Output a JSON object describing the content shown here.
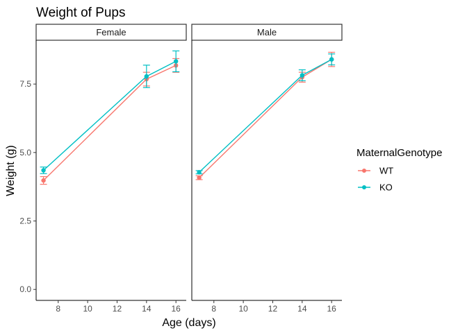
{
  "chart_data": {
    "type": "line",
    "title": "Weight of Pups",
    "xlabel": "Age (days)",
    "ylabel": "Weight (g)",
    "xlim": [
      6.5,
      16.7
    ],
    "ylim": [
      -0.4,
      9.1
    ],
    "xticks": [
      8,
      10,
      12,
      14,
      16
    ],
    "xtick_labels": [
      "8",
      "10",
      "12",
      "14",
      "16"
    ],
    "yticks": [
      0,
      2.5,
      5,
      7.5
    ],
    "ytick_labels": [
      "0.0",
      "2.5",
      "5.0",
      "7.5"
    ],
    "grid": false,
    "legend": {
      "title": "MaternalGenotype",
      "placement": "right",
      "entries": [
        {
          "label": "WT",
          "color": "#F8766D"
        },
        {
          "label": "KO",
          "color": "#00BFC4"
        }
      ]
    },
    "panels": [
      {
        "label": "Female",
        "series": [
          {
            "name": "WT",
            "color": "#F8766D",
            "x": [
              7,
              14,
              16
            ],
            "y": [
              3.98,
              7.68,
              8.18
            ],
            "err": [
              0.14,
              0.25,
              0.25
            ]
          },
          {
            "name": "KO",
            "color": "#00BFC4",
            "x": [
              7,
              14,
              16
            ],
            "y": [
              4.35,
              7.78,
              8.33
            ],
            "err": [
              0.12,
              0.41,
              0.38
            ]
          }
        ]
      },
      {
        "label": "Male",
        "series": [
          {
            "name": "WT",
            "color": "#F8766D",
            "x": [
              7,
              14,
              16
            ],
            "y": [
              4.08,
              7.75,
              8.4
            ],
            "err": [
              0.07,
              0.18,
              0.26
            ]
          },
          {
            "name": "KO",
            "color": "#00BFC4",
            "x": [
              7,
              14,
              16
            ],
            "y": [
              4.28,
              7.82,
              8.4
            ],
            "err": [
              0.06,
              0.2,
              0.2
            ]
          }
        ]
      }
    ]
  }
}
